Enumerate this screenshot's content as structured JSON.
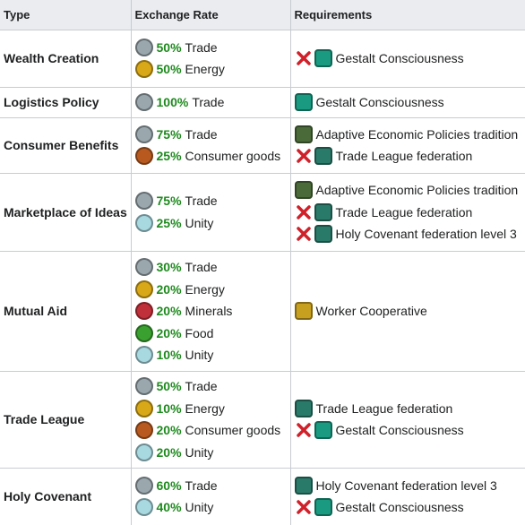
{
  "table": {
    "headers": [
      "Type",
      "Exchange Rate",
      "Requirements"
    ],
    "rows": [
      {
        "type": "Wealth Creation",
        "rates": [
          {
            "percent": "50%",
            "resource": "Trade",
            "color": "#9aa8ae"
          },
          {
            "percent": "50%",
            "resource": "Energy",
            "color": "#d8a818"
          }
        ],
        "requirements": [
          {
            "text": "Gestalt Consciousness",
            "negated": true,
            "color": "#1a9a80"
          }
        ]
      },
      {
        "type": "Logistics Policy",
        "rates": [
          {
            "percent": "100%",
            "resource": "Trade",
            "color": "#9aa8ae"
          }
        ],
        "requirements": [
          {
            "text": "Gestalt Consciousness",
            "negated": false,
            "color": "#1a9a80"
          }
        ]
      },
      {
        "type": "Consumer Benefits",
        "rates": [
          {
            "percent": "75%",
            "resource": "Trade",
            "color": "#9aa8ae"
          },
          {
            "percent": "25%",
            "resource": "Consumer goods",
            "color": "#b85a20"
          }
        ],
        "requirements": [
          {
            "text": "Adaptive Economic Policies tradition",
            "negated": false,
            "color": "#4a6a3a"
          },
          {
            "text": "Trade League federation",
            "negated": true,
            "color": "#2a7a6a"
          }
        ]
      },
      {
        "type": "Marketplace of Ideas",
        "rates": [
          {
            "percent": "75%",
            "resource": "Trade",
            "color": "#9aa8ae"
          },
          {
            "percent": "25%",
            "resource": "Unity",
            "color": "#a8d8e0"
          }
        ],
        "requirements": [
          {
            "text": "Adaptive Economic Policies tradition",
            "negated": false,
            "color": "#4a6a3a"
          },
          {
            "text": "Trade League federation",
            "negated": true,
            "color": "#2a7a6a"
          },
          {
            "text": "Holy Covenant federation level 3",
            "negated": true,
            "color": "#2a7a6a"
          }
        ]
      },
      {
        "type": "Mutual Aid",
        "rates": [
          {
            "percent": "30%",
            "resource": "Trade",
            "color": "#9aa8ae"
          },
          {
            "percent": "20%",
            "resource": "Energy",
            "color": "#d8a818"
          },
          {
            "percent": "20%",
            "resource": "Minerals",
            "color": "#c0303a"
          },
          {
            "percent": "20%",
            "resource": "Food",
            "color": "#3aa030"
          },
          {
            "percent": "10%",
            "resource": "Unity",
            "color": "#a8d8e0"
          }
        ],
        "requirements": [
          {
            "text": "Worker Cooperative",
            "negated": false,
            "color": "#c8a020"
          }
        ]
      },
      {
        "type": "Trade League",
        "rates": [
          {
            "percent": "50%",
            "resource": "Trade",
            "color": "#9aa8ae"
          },
          {
            "percent": "10%",
            "resource": "Energy",
            "color": "#d8a818"
          },
          {
            "percent": "20%",
            "resource": "Consumer goods",
            "color": "#b85a20"
          },
          {
            "percent": "20%",
            "resource": "Unity",
            "color": "#a8d8e0"
          }
        ],
        "requirements": [
          {
            "text": "Trade League federation",
            "negated": false,
            "color": "#2a7a6a"
          },
          {
            "text": "Gestalt Consciousness",
            "negated": true,
            "color": "#1a9a80"
          }
        ]
      },
      {
        "type": "Holy Covenant",
        "rates": [
          {
            "percent": "60%",
            "resource": "Trade",
            "color": "#9aa8ae"
          },
          {
            "percent": "40%",
            "resource": "Unity",
            "color": "#a8d8e0"
          }
        ],
        "requirements": [
          {
            "text": "Holy Covenant federation level 3",
            "negated": false,
            "color": "#2a7a6a"
          },
          {
            "text": "Gestalt Consciousness",
            "negated": true,
            "color": "#1a9a80"
          }
        ]
      }
    ]
  }
}
